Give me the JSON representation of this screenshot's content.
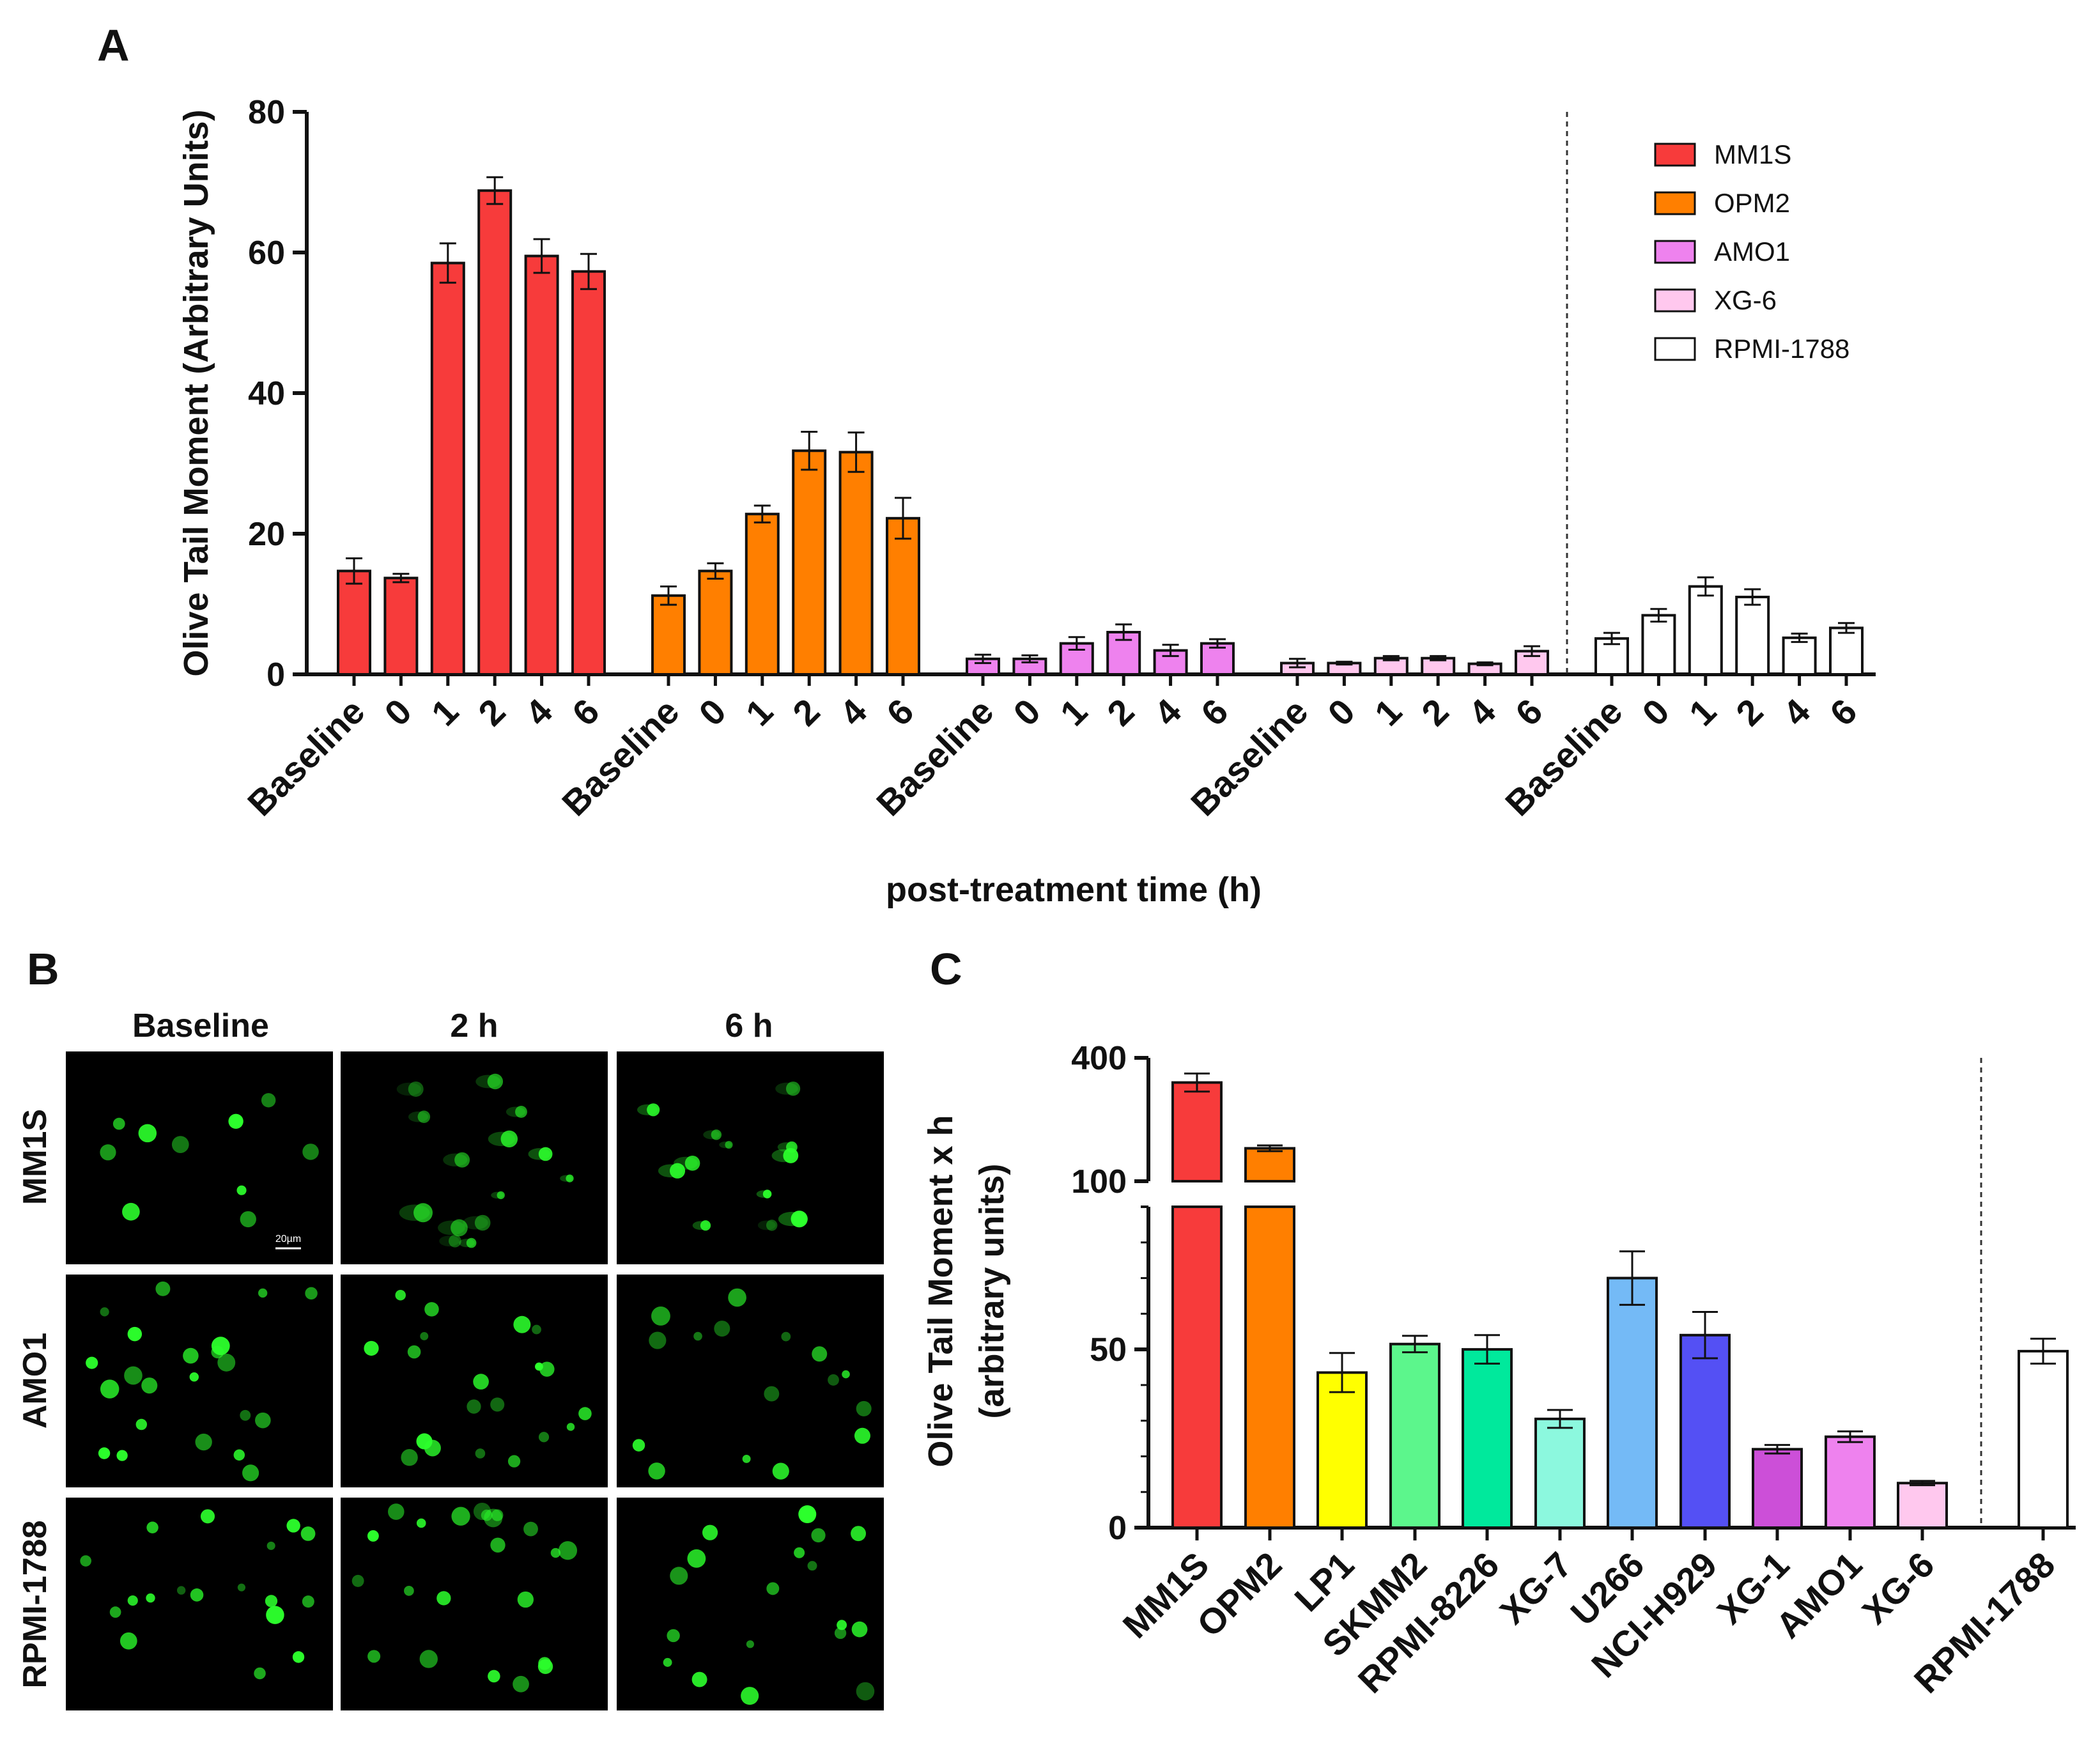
{
  "colors": {
    "MM1S": "#f73b3b",
    "OPM2": "#ff7f00",
    "AMO1": "#ee82ee",
    "XG-6": "#ffc8ee",
    "RPMI-1788": "#ffffff",
    "LP1": "#ffff00",
    "SKMM2": "#5cf68c",
    "RPMI-8226": "#00e99c",
    "XG-7": "#8cf8de",
    "U266": "#74baf6",
    "NCI-H929": "#5450f4",
    "XG-1": "#cc4fd8",
    "micrograph_bg": "#000000",
    "cell_green": "#2cff2c"
  },
  "panel_labels": [
    "A",
    "B",
    "C"
  ],
  "panel_b": {
    "columns": [
      "Baseline",
      "2 h",
      "6 h"
    ],
    "rows": [
      "MM1S",
      "AMO1",
      "RPMI-1788"
    ],
    "scale_bar_label": "20µm"
  },
  "chart_data": [
    {
      "panel": "A",
      "type": "bar",
      "ylabel": "Olive Tail Moment (Arbitrary Units)",
      "xlabel": "post-treatment time (h)",
      "ylim": [
        0,
        80
      ],
      "yticks": [
        0,
        20,
        40,
        60,
        80
      ],
      "categories": [
        "Baseline",
        "0",
        "1",
        "2",
        "4",
        "6"
      ],
      "series": [
        {
          "name": "MM1S",
          "values": [
            14.7,
            13.7,
            58.5,
            68.8,
            59.5,
            57.3
          ],
          "errors": [
            1.8,
            0.6,
            2.8,
            1.9,
            2.4,
            2.5
          ]
        },
        {
          "name": "OPM2",
          "values": [
            11.2,
            14.7,
            22.8,
            31.8,
            31.6,
            22.2
          ],
          "errors": [
            1.3,
            1.1,
            1.2,
            2.7,
            2.8,
            2.9
          ]
        },
        {
          "name": "AMO1",
          "values": [
            2.2,
            2.2,
            4.4,
            6.0,
            3.4,
            4.4
          ],
          "errors": [
            0.6,
            0.5,
            0.9,
            1.1,
            0.8,
            0.6
          ]
        },
        {
          "name": "XG-6",
          "values": [
            1.6,
            1.6,
            2.3,
            2.3,
            1.5,
            3.3
          ],
          "errors": [
            0.6,
            0.2,
            0.3,
            0.3,
            0.2,
            0.7
          ]
        },
        {
          "name": "RPMI-1788",
          "values": [
            5.1,
            8.4,
            12.5,
            11.0,
            5.2,
            6.6
          ],
          "errors": [
            0.8,
            0.9,
            1.3,
            1.1,
            0.6,
            0.7
          ]
        }
      ],
      "legend": [
        "MM1S",
        "OPM2",
        "AMO1",
        "XG-6",
        "RPMI-1788"
      ],
      "legend_position": "top-right",
      "separator": "dashed line between XG-6 and RPMI-1788 groups"
    },
    {
      "panel": "C",
      "type": "bar",
      "ylabel_lines": [
        "Olive Tail Moment x h",
        "(arbitrary units)"
      ],
      "yaxis_break": {
        "lower_range": [
          0,
          100
        ],
        "upper_range": [
          100,
          400
        ]
      },
      "yticks": [
        0,
        50,
        100,
        400
      ],
      "categories": [
        "MM1S",
        "OPM2",
        "LP1",
        "SKMM2",
        "RPMI-8226",
        "XG-7",
        "U266",
        "NCI-H929",
        "XG-1",
        "AMO1",
        "XG-6",
        "RPMI-1788"
      ],
      "values": [
        340,
        180,
        43.5,
        51.5,
        50.0,
        30.5,
        70.0,
        54.0,
        22.0,
        25.5,
        12.5,
        49.5
      ],
      "errors": [
        22,
        7,
        5.5,
        2.3,
        4.0,
        2.5,
        7.5,
        6.5,
        1.2,
        1.5,
        0.6,
        3.5
      ],
      "separator": "dashed line before RPMI-1788"
    }
  ]
}
